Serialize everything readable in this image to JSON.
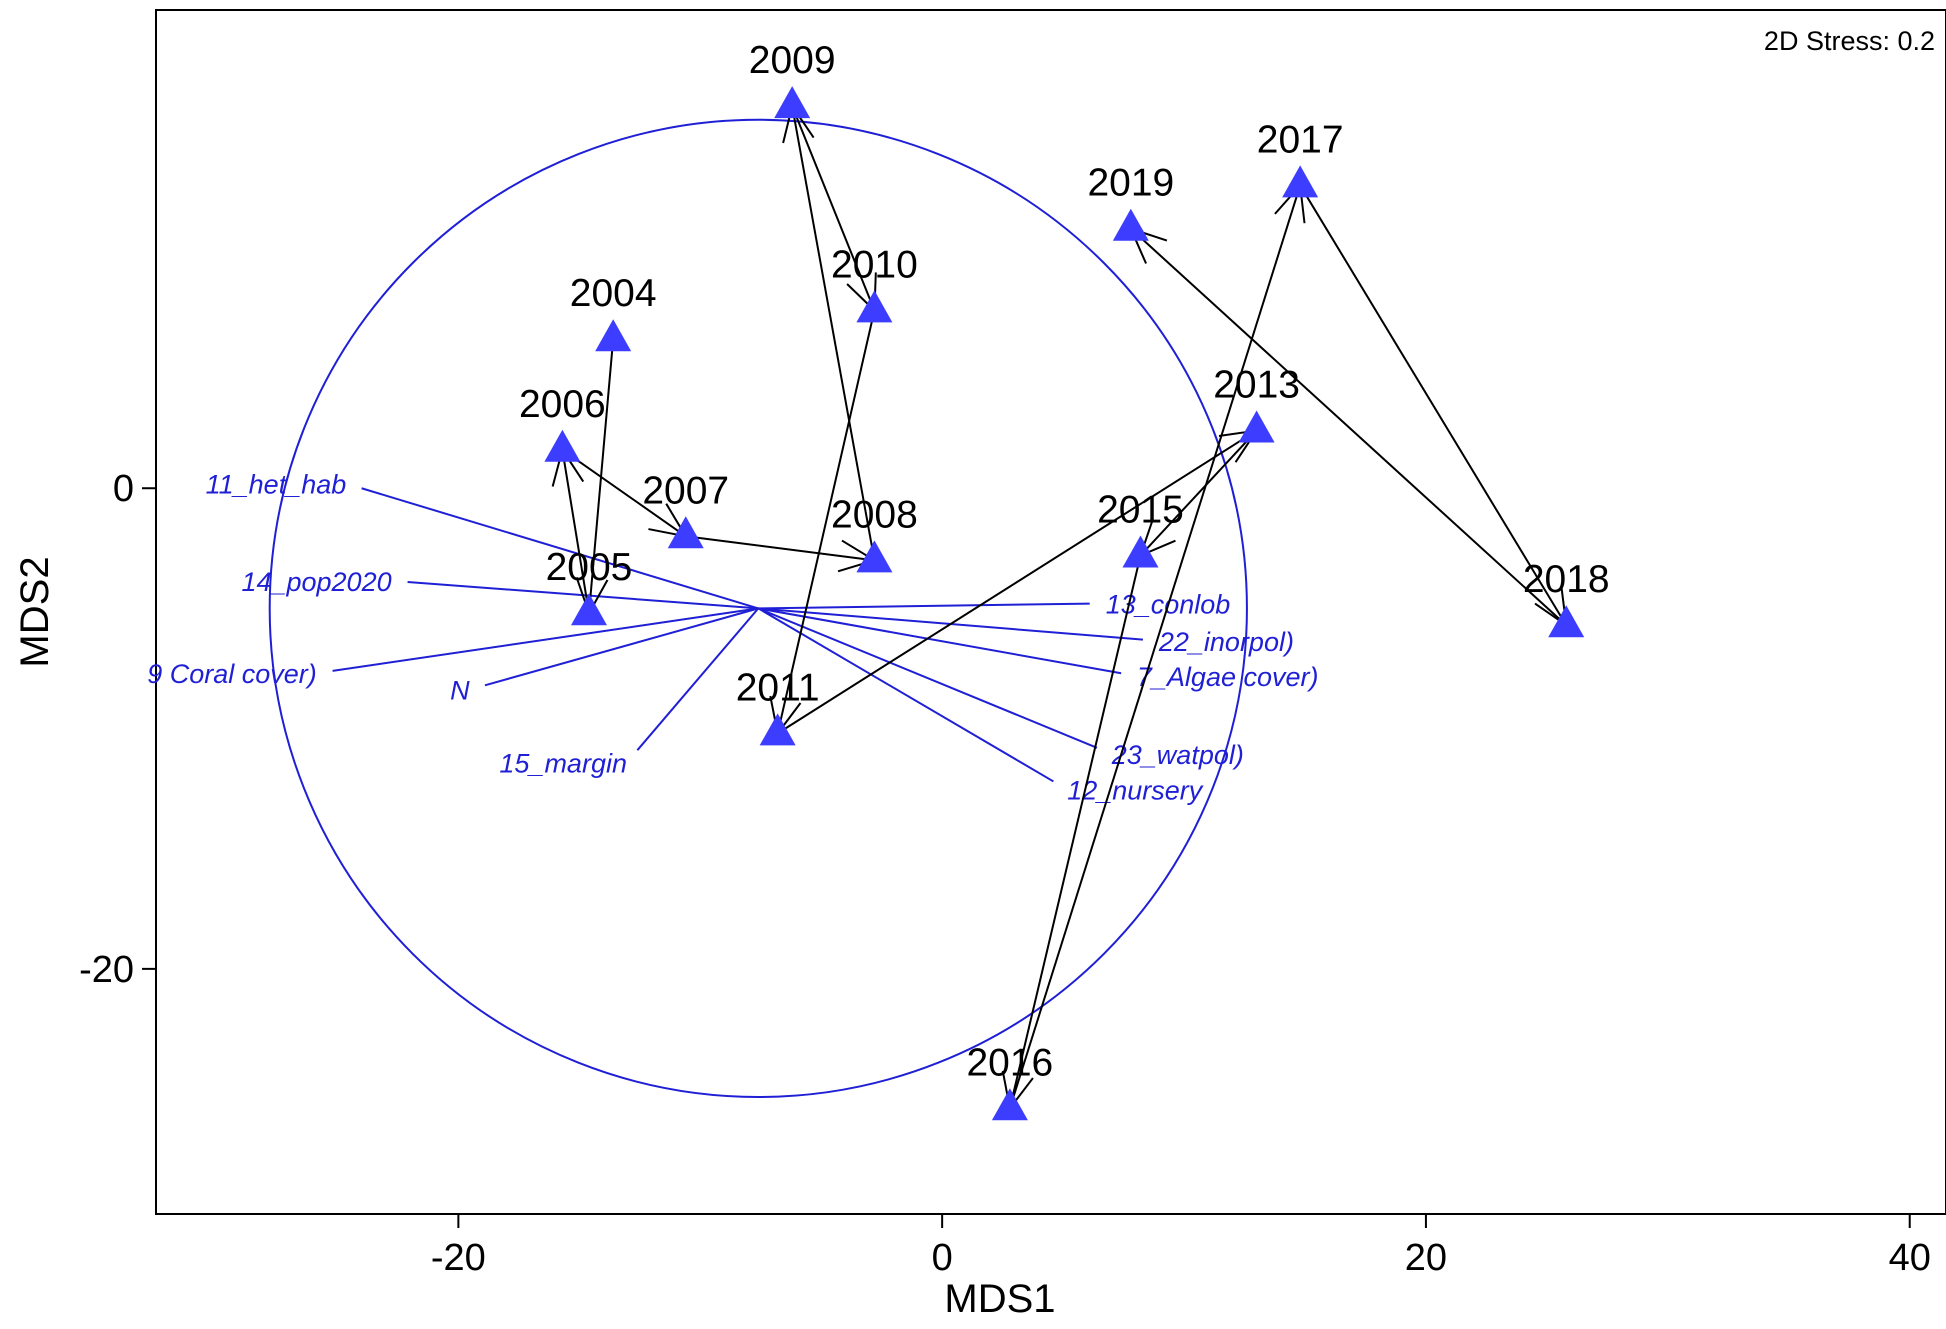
{
  "chart_data": {
    "type": "scatter",
    "subtype": "nMDS ordination with trajectory and vector overlay",
    "stress_label": "2D Stress: 0.2",
    "xlabel": "MDS1",
    "ylabel": "MDS2",
    "xlim": [
      -32.5,
      41.5
    ],
    "ylim": [
      -30.2,
      19.9
    ],
    "xticks": [
      -20,
      0,
      20,
      40
    ],
    "yticks": [
      0,
      -20
    ],
    "grid": false,
    "colors": {
      "marker": "#3d3dff",
      "circle": "#1f1fd6",
      "vector": "#1f1fd6",
      "vector_label": "#1f1fd6",
      "trajectory": "#000000"
    },
    "points": [
      {
        "label": "2004",
        "x": -13.6,
        "y": 6.2
      },
      {
        "label": "2005",
        "x": -14.6,
        "y": -5.2
      },
      {
        "label": "2006",
        "x": -15.7,
        "y": 1.6
      },
      {
        "label": "2007",
        "x": -10.6,
        "y": -2.0
      },
      {
        "label": "2008",
        "x": -2.8,
        "y": -3.0
      },
      {
        "label": "2009",
        "x": -6.2,
        "y": 15.9
      },
      {
        "label": "2010",
        "x": -2.8,
        "y": 7.4
      },
      {
        "label": "2011",
        "x": -6.8,
        "y": -10.2
      },
      {
        "label": "2013",
        "x": 13.0,
        "y": 2.4
      },
      {
        "label": "2015",
        "x": 8.2,
        "y": -2.8
      },
      {
        "label": "2016",
        "x": 2.8,
        "y": -25.8
      },
      {
        "label": "2017",
        "x": 14.8,
        "y": 12.6
      },
      {
        "label": "2018",
        "x": 25.8,
        "y": -5.7
      },
      {
        "label": "2019",
        "x": 7.8,
        "y": 10.8
      }
    ],
    "trajectory_order": [
      "2004",
      "2005",
      "2006",
      "2007",
      "2008",
      "2009",
      "2010",
      "2011",
      "2013",
      "2015",
      "2016",
      "2017",
      "2018",
      "2019"
    ],
    "vector_origin": {
      "x": -7.6,
      "y": -5.0
    },
    "vector_circle": {
      "cx": -7.6,
      "cy": -5.0,
      "r": 20.2
    },
    "vectors": [
      {
        "label": "11_het_hab",
        "x": -24.0,
        "y": 0.0
      },
      {
        "label": "14_pop2020",
        "x": -22.1,
        "y": -3.9
      },
      {
        "label": "9 Coral cover)",
        "x": -25.2,
        "y": -7.6
      },
      {
        "label": "N",
        "x": -18.9,
        "y": -8.2
      },
      {
        "label": "15_margin",
        "x": -12.6,
        "y": -10.9
      },
      {
        "label": "13_conlob",
        "x": 6.1,
        "y": -4.8
      },
      {
        "label": "22_inorpol)",
        "x": 8.3,
        "y": -6.3
      },
      {
        "label": "7_Algae cover)",
        "x": 7.4,
        "y": -7.7
      },
      {
        "label": "23_watpol)",
        "x": 6.4,
        "y": -10.8
      },
      {
        "label": "12_nursery",
        "x": 4.6,
        "y": -12.2
      }
    ]
  }
}
